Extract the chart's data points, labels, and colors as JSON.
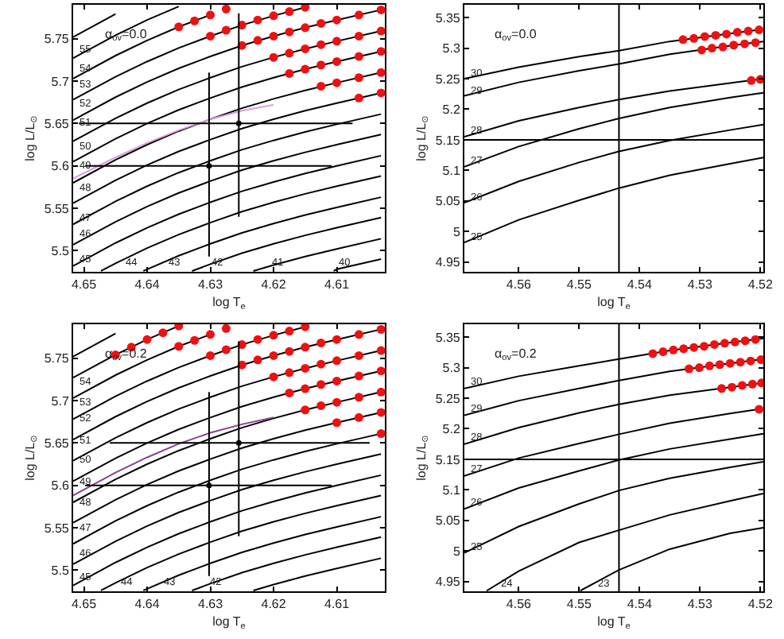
{
  "chart_data": [
    {
      "type": "line",
      "xlabel": "log T$_{e}$",
      "ylabel": "log L/L$_{⊙}$",
      "xlim": [
        4.6517,
        4.6024
      ],
      "ylim": [
        5.475,
        5.79
      ],
      "xticks": [
        4.65,
        4.64,
        4.63,
        4.62,
        4.61
      ],
      "yticks": [
        5.5,
        5.55,
        5.6,
        5.65,
        5.7,
        5.75
      ],
      "x": [
        4.6517,
        4.645,
        4.64,
        4.635,
        4.63,
        4.625,
        4.62,
        4.615,
        4.61,
        4.603
      ],
      "series": [
        {
          "type": "line",
          "color": "#000000",
          "values": [
            5.752,
            5.779,
            null,
            null,
            null,
            null,
            null,
            null,
            null,
            null
          ]
        },
        {
          "type": "line",
          "color": "#000000",
          "values": [
            5.727,
            5.754,
            5.772,
            5.788,
            null,
            null,
            null,
            null,
            null,
            null
          ]
        },
        {
          "type": "line",
          "color": "#000000",
          "values": [
            5.703,
            5.73,
            5.748,
            5.764,
            5.778,
            null,
            null,
            null,
            null,
            null
          ]
        },
        {
          "type": "line",
          "color": "#000000",
          "values": [
            5.678,
            5.705,
            5.723,
            5.739,
            5.753,
            5.766,
            5.777,
            5.787,
            null,
            null
          ]
        },
        {
          "type": "line",
          "color": "#000000",
          "values": [
            5.654,
            5.681,
            5.699,
            5.715,
            5.729,
            5.742,
            5.753,
            5.763,
            5.772,
            5.784
          ]
        },
        {
          "type": "line",
          "color": "#000000",
          "values": [
            5.629,
            5.656,
            5.674,
            5.69,
            5.704,
            5.717,
            5.728,
            5.738,
            5.747,
            5.759
          ]
        },
        {
          "type": "line",
          "color": "#000000",
          "values": [
            5.605,
            5.632,
            5.65,
            5.666,
            5.68,
            5.693,
            5.704,
            5.714,
            5.723,
            5.735
          ]
        },
        {
          "type": "line",
          "color": "#000000",
          "values": [
            5.58,
            5.607,
            5.625,
            5.641,
            5.655,
            5.668,
            5.679,
            5.689,
            5.698,
            5.71
          ]
        },
        {
          "type": "line",
          "color": "#000000",
          "values": [
            5.556,
            5.583,
            5.601,
            5.617,
            5.631,
            5.644,
            5.655,
            5.665,
            5.674,
            5.686
          ]
        },
        {
          "type": "line",
          "color": "#000000",
          "values": [
            5.531,
            5.558,
            5.576,
            5.592,
            5.606,
            5.619,
            5.63,
            5.64,
            5.649,
            5.661
          ]
        },
        {
          "type": "line",
          "color": "#000000",
          "values": [
            5.507,
            5.534,
            5.552,
            5.568,
            5.582,
            5.595,
            5.606,
            5.616,
            5.625,
            5.637
          ]
        },
        {
          "type": "line",
          "color": "#000000",
          "values": [
            5.482,
            5.509,
            5.527,
            5.543,
            5.557,
            5.57,
            5.581,
            5.591,
            5.6,
            5.612
          ]
        },
        {
          "type": "line",
          "color": "#000000",
          "x": [
            4.6473,
            4.645,
            4.64,
            4.635,
            4.63,
            4.625,
            4.62,
            4.615,
            4.61,
            4.603
          ],
          "values": [
            5.476,
            5.485,
            5.503,
            5.519,
            5.533,
            5.546,
            5.557,
            5.567,
            5.576,
            5.588
          ]
        },
        {
          "type": "line",
          "color": "#000000",
          "x": [
            4.6406,
            4.64,
            4.635,
            4.63,
            4.625,
            4.62,
            4.615,
            4.61,
            4.603
          ],
          "values": [
            5.476,
            5.478,
            5.494,
            5.508,
            5.521,
            5.532,
            5.542,
            5.551,
            5.563
          ]
        },
        {
          "type": "line",
          "color": "#000000",
          "x": [
            4.6329,
            4.63,
            4.625,
            4.62,
            4.615,
            4.61,
            4.603
          ],
          "values": [
            5.476,
            5.484,
            5.497,
            5.508,
            5.518,
            5.527,
            5.539
          ]
        },
        {
          "type": "line",
          "color": "#000000",
          "x": [
            4.6232,
            4.62,
            4.615,
            4.61,
            4.603
          ],
          "values": [
            5.476,
            5.483,
            5.493,
            5.502,
            5.514
          ]
        },
        {
          "type": "line",
          "color": "#000000",
          "x": [
            4.6105,
            4.61,
            4.603
          ],
          "values": [
            5.476,
            5.478,
            5.49
          ]
        },
        {
          "type": "line",
          "color": "#dd99dd",
          "values": [
            5.585,
            5.61,
            5.627,
            5.642,
            5.655,
            5.665,
            5.672,
            null,
            null,
            null
          ]
        },
        {
          "type": "scatter",
          "marker": "circle",
          "color": "#ee1111",
          "x": [
            4.635,
            4.6325,
            4.63,
            4.6275
          ],
          "values": [
            5.764,
            5.771,
            5.778,
            5.785
          ]
        },
        {
          "type": "scatter",
          "marker": "circle",
          "color": "#ee1111",
          "x": [
            4.63,
            4.6275,
            4.625,
            4.6225,
            4.62,
            4.6175,
            4.615
          ],
          "values": [
            5.753,
            5.76,
            5.766,
            5.772,
            5.777,
            5.782,
            5.787
          ]
        },
        {
          "type": "scatter",
          "marker": "circle",
          "color": "#ee1111",
          "x": [
            4.625,
            4.6225,
            4.62,
            4.6175,
            4.615,
            4.6125,
            4.61,
            4.6065,
            4.603
          ],
          "values": [
            5.742,
            5.748,
            5.753,
            5.758,
            5.763,
            5.768,
            5.772,
            5.778,
            5.784
          ]
        },
        {
          "type": "scatter",
          "marker": "circle",
          "color": "#ee1111",
          "x": [
            4.62,
            4.6175,
            4.615,
            4.6125,
            4.61,
            4.6065,
            4.603
          ],
          "values": [
            5.728,
            5.733,
            5.738,
            5.743,
            5.747,
            5.753,
            5.759
          ]
        },
        {
          "type": "scatter",
          "marker": "circle",
          "color": "#ee1111",
          "x": [
            4.6175,
            4.615,
            4.6125,
            4.61,
            4.6065,
            4.603
          ],
          "values": [
            5.709,
            5.714,
            5.719,
            5.723,
            5.729,
            5.735
          ]
        },
        {
          "type": "scatter",
          "marker": "circle",
          "color": "#ee1111",
          "x": [
            4.6125,
            4.61,
            4.6065,
            4.603
          ],
          "values": [
            5.694,
            5.698,
            5.704,
            5.71
          ]
        },
        {
          "type": "scatter",
          "marker": "circle",
          "color": "#ee1111",
          "x": [
            4.6065,
            4.603
          ],
          "values": [
            5.68,
            5.686
          ]
        },
        {
          "type": "line",
          "color": "#000000",
          "x": [
            4.6498,
            4.6108
          ],
          "values": [
            5.6,
            5.6
          ]
        },
        {
          "type": "line",
          "color": "#000000",
          "x": [
            4.6302,
            4.6302
          ],
          "values": [
            5.493,
            5.71
          ]
        },
        {
          "type": "line",
          "color": "#000000",
          "x": [
            4.6508,
            4.6075
          ],
          "values": [
            5.65,
            5.65
          ]
        },
        {
          "type": "line",
          "color": "#000000",
          "x": [
            4.6255,
            4.6255
          ],
          "values": [
            5.54,
            5.78
          ]
        },
        {
          "type": "scatter",
          "marker": "circle",
          "color": "#000000",
          "x": [
            4.6302,
            4.6255
          ],
          "values": [
            5.6,
            5.65
          ]
        }
      ],
      "annotations": [
        "α$_{ov}$=0.0",
        {
          "text": "55",
          "x": 4.6512,
          "y": 5.736
        },
        {
          "text": "54",
          "x": 4.6512,
          "y": 5.714
        },
        {
          "text": "53",
          "x": 4.6512,
          "y": 5.696
        },
        {
          "text": "52",
          "x": 4.6512,
          "y": 5.672
        },
        {
          "text": "51",
          "x": 4.6512,
          "y": 5.65
        },
        {
          "text": "50",
          "x": 4.6512,
          "y": 5.623
        },
        {
          "text": "49",
          "x": 4.6512,
          "y": 5.6
        },
        {
          "text": "48",
          "x": 4.6512,
          "y": 5.573
        },
        {
          "text": "47",
          "x": 4.6512,
          "y": 5.538
        },
        {
          "text": "46",
          "x": 4.6512,
          "y": 5.52
        },
        {
          "text": "45",
          "x": 4.6512,
          "y": 5.489
        },
        {
          "text": "44",
          "x": 4.644,
          "y": 5.485
        },
        {
          "text": "43",
          "x": 4.6371,
          "y": 5.485
        },
        {
          "text": "42",
          "x": 4.6302,
          "y": 5.485
        },
        {
          "text": "41",
          "x": 4.6208,
          "y": 5.485
        },
        {
          "text": "40",
          "x": 4.6103,
          "y": 5.485
        }
      ]
    },
    {
      "type": "line",
      "xlabel": "log T$_{e}$",
      "ylabel": "log L/L$_{⊙}$",
      "xlim": [
        4.569,
        4.5195
      ],
      "ylim": [
        4.934,
        5.371
      ],
      "xticks": [
        4.56,
        4.55,
        4.54,
        4.53,
        4.52
      ],
      "yticks": [
        4.95,
        5,
        5.05,
        5.1,
        5.15,
        5.2,
        5.25,
        5.3,
        5.35
      ],
      "x": [
        4.569,
        4.56,
        4.55,
        4.5434,
        4.535,
        4.525,
        4.5195
      ],
      "series": [
        {
          "type": "line",
          "color": "#000000",
          "values": [
            5.25,
            5.269,
            5.286,
            5.296,
            5.311,
            5.324,
            5.331
          ]
        },
        {
          "type": "line",
          "color": "#000000",
          "values": [
            5.222,
            5.244,
            5.263,
            5.274,
            5.29,
            5.304,
            5.311
          ]
        },
        {
          "type": "line",
          "color": "#000000",
          "values": [
            5.155,
            5.181,
            5.203,
            5.216,
            5.23,
            5.243,
            5.25
          ]
        },
        {
          "type": "line",
          "color": "#000000",
          "values": [
            5.106,
            5.139,
            5.168,
            5.185,
            5.203,
            5.219,
            5.227
          ]
        },
        {
          "type": "line",
          "color": "#000000",
          "values": [
            5.047,
            5.082,
            5.113,
            5.131,
            5.149,
            5.166,
            5.175
          ]
        },
        {
          "type": "line",
          "color": "#000000",
          "values": [
            4.982,
            5.019,
            5.051,
            5.071,
            5.092,
            5.111,
            5.121
          ]
        },
        {
          "type": "scatter",
          "marker": "circle",
          "color": "#ee1111",
          "x": [
            4.5328,
            4.531,
            4.5292,
            4.5274,
            4.5256,
            4.5238,
            4.522,
            4.5202
          ],
          "values": [
            5.314,
            5.316,
            5.319,
            5.321,
            5.323,
            5.326,
            5.328,
            5.33
          ]
        },
        {
          "type": "scatter",
          "marker": "circle",
          "color": "#ee1111",
          "x": [
            4.5297,
            4.528,
            4.5262,
            4.5244,
            4.5226,
            4.5208
          ],
          "values": [
            5.297,
            5.3,
            5.302,
            5.305,
            5.307,
            5.309
          ]
        },
        {
          "type": "scatter",
          "marker": "circle",
          "color": "#ee1111",
          "x": [
            4.5215,
            4.52
          ],
          "values": [
            5.247,
            5.249
          ]
        }
      ],
      "ref_lines": [
        {
          "axis": "x",
          "value": 4.5434
        },
        {
          "axis": "y",
          "value": 5.15
        }
      ],
      "annotations": [
        "α$_{ov}$=0.0",
        {
          "text": "30",
          "x": 4.5685,
          "y": 5.258
        },
        {
          "text": "29",
          "x": 4.5685,
          "y": 5.23
        },
        {
          "text": "28",
          "x": 4.5685,
          "y": 5.163
        },
        {
          "text": "27",
          "x": 4.5685,
          "y": 5.115
        },
        {
          "text": "26",
          "x": 4.5685,
          "y": 5.056
        },
        {
          "text": "25",
          "x": 4.5685,
          "y": 4.99
        }
      ]
    },
    {
      "type": "line",
      "xlabel": "log T$_{e}$",
      "ylabel": "log L/L$_{⊙}$",
      "xlim": [
        4.6517,
        4.6024
      ],
      "ylim": [
        5.475,
        5.79
      ],
      "xticks": [
        4.65,
        4.64,
        4.63,
        4.62,
        4.61
      ],
      "yticks": [
        5.5,
        5.55,
        5.6,
        5.65,
        5.7,
        5.75
      ],
      "x": [
        4.6517,
        4.645,
        4.64,
        4.635,
        4.63,
        4.625,
        4.62,
        4.615,
        4.61,
        4.603
      ],
      "series": [
        {
          "type": "line",
          "color": "#000000",
          "values": [
            5.752,
            5.779,
            null,
            null,
            null,
            null,
            null,
            null,
            null,
            null
          ]
        },
        {
          "type": "line",
          "color": "#000000",
          "values": [
            5.727,
            5.754,
            5.772,
            5.788,
            null,
            null,
            null,
            null,
            null,
            null
          ]
        },
        {
          "type": "line",
          "color": "#000000",
          "values": [
            5.703,
            5.73,
            5.748,
            5.764,
            5.778,
            null,
            null,
            null,
            null,
            null
          ]
        },
        {
          "type": "line",
          "color": "#000000",
          "values": [
            5.678,
            5.705,
            5.723,
            5.739,
            5.753,
            5.766,
            5.777,
            5.787,
            null,
            null
          ]
        },
        {
          "type": "line",
          "color": "#000000",
          "values": [
            5.654,
            5.681,
            5.699,
            5.715,
            5.729,
            5.742,
            5.753,
            5.763,
            5.772,
            5.784
          ]
        },
        {
          "type": "line",
          "color": "#000000",
          "values": [
            5.629,
            5.656,
            5.674,
            5.69,
            5.704,
            5.717,
            5.728,
            5.738,
            5.747,
            5.759
          ]
        },
        {
          "type": "line",
          "color": "#000000",
          "values": [
            5.605,
            5.632,
            5.65,
            5.666,
            5.68,
            5.693,
            5.704,
            5.714,
            5.723,
            5.735
          ]
        },
        {
          "type": "line",
          "color": "#000000",
          "values": [
            5.58,
            5.607,
            5.625,
            5.641,
            5.655,
            5.668,
            5.679,
            5.689,
            5.698,
            5.71
          ]
        },
        {
          "type": "line",
          "color": "#000000",
          "values": [
            5.556,
            5.583,
            5.601,
            5.617,
            5.631,
            5.644,
            5.655,
            5.665,
            5.674,
            5.686
          ]
        },
        {
          "type": "line",
          "color": "#000000",
          "values": [
            5.531,
            5.558,
            5.576,
            5.592,
            5.606,
            5.619,
            5.63,
            5.64,
            5.649,
            5.661
          ]
        },
        {
          "type": "line",
          "color": "#000000",
          "values": [
            5.507,
            5.534,
            5.552,
            5.568,
            5.582,
            5.595,
            5.606,
            5.616,
            5.625,
            5.637
          ]
        },
        {
          "type": "line",
          "color": "#000000",
          "values": [
            5.482,
            5.509,
            5.527,
            5.543,
            5.557,
            5.57,
            5.581,
            5.591,
            5.6,
            5.612
          ]
        },
        {
          "type": "line",
          "color": "#000000",
          "x": [
            4.6473,
            4.645,
            4.64,
            4.635,
            4.63,
            4.625,
            4.62,
            4.615,
            4.61,
            4.603
          ],
          "values": [
            5.476,
            5.485,
            5.503,
            5.519,
            5.533,
            5.546,
            5.557,
            5.567,
            5.576,
            5.588
          ]
        },
        {
          "type": "line",
          "color": "#000000",
          "x": [
            4.6406,
            4.64,
            4.635,
            4.63,
            4.625,
            4.62,
            4.615,
            4.61,
            4.603
          ],
          "values": [
            5.476,
            5.478,
            5.494,
            5.508,
            5.521,
            5.532,
            5.542,
            5.551,
            5.563
          ]
        },
        {
          "type": "line",
          "color": "#000000",
          "x": [
            4.6329,
            4.63,
            4.625,
            4.62,
            4.615,
            4.61,
            4.603
          ],
          "values": [
            5.476,
            5.484,
            5.497,
            5.508,
            5.518,
            5.527,
            5.539
          ]
        },
        {
          "type": "line",
          "color": "#000000",
          "x": [
            4.6232,
            4.62,
            4.615,
            4.61,
            4.603
          ],
          "values": [
            5.476,
            5.483,
            5.493,
            5.502,
            5.514
          ]
        },
        {
          "type": "line",
          "color": "#884488",
          "values": [
            5.588,
            5.615,
            5.633,
            5.649,
            5.662,
            5.672,
            5.68,
            null,
            null,
            null
          ]
        },
        {
          "type": "scatter",
          "marker": "circle",
          "color": "#ee1111",
          "x": [
            4.645,
            4.6425,
            4.64,
            4.6375,
            4.635
          ],
          "values": [
            5.754,
            5.763,
            5.772,
            5.78,
            5.788
          ]
        },
        {
          "type": "scatter",
          "marker": "circle",
          "color": "#ee1111",
          "x": [
            4.635,
            4.6325,
            4.63,
            4.6275
          ],
          "values": [
            5.764,
            5.771,
            5.778,
            5.785
          ]
        },
        {
          "type": "scatter",
          "marker": "circle",
          "color": "#ee1111",
          "x": [
            4.63,
            4.6275,
            4.625,
            4.6225,
            4.62,
            4.6175,
            4.615
          ],
          "values": [
            5.753,
            5.76,
            5.766,
            5.772,
            5.777,
            5.782,
            5.787
          ]
        },
        {
          "type": "scatter",
          "marker": "circle",
          "color": "#ee1111",
          "x": [
            4.625,
            4.6225,
            4.62,
            4.6175,
            4.615,
            4.6125,
            4.61,
            4.6065,
            4.603
          ],
          "values": [
            5.742,
            5.748,
            5.753,
            5.758,
            5.763,
            5.768,
            5.772,
            5.778,
            5.784
          ]
        },
        {
          "type": "scatter",
          "marker": "circle",
          "color": "#ee1111",
          "x": [
            4.62,
            4.6175,
            4.615,
            4.6125,
            4.61,
            4.6065,
            4.603
          ],
          "values": [
            5.728,
            5.733,
            5.738,
            5.743,
            5.747,
            5.753,
            5.759
          ]
        },
        {
          "type": "scatter",
          "marker": "circle",
          "color": "#ee1111",
          "x": [
            4.6175,
            4.615,
            4.6125,
            4.61,
            4.6065,
            4.603
          ],
          "values": [
            5.709,
            5.714,
            5.719,
            5.723,
            5.729,
            5.735
          ]
        },
        {
          "type": "scatter",
          "marker": "circle",
          "color": "#ee1111",
          "x": [
            4.615,
            4.6125,
            4.61,
            4.6065,
            4.603
          ],
          "values": [
            5.689,
            5.694,
            5.698,
            5.704,
            5.71
          ]
        },
        {
          "type": "scatter",
          "marker": "circle",
          "color": "#ee1111",
          "x": [
            4.61,
            4.6065,
            4.603
          ],
          "values": [
            5.674,
            5.68,
            5.686
          ]
        },
        {
          "type": "scatter",
          "marker": "circle",
          "color": "#ee1111",
          "x": [
            4.603
          ],
          "values": [
            5.661
          ]
        },
        {
          "type": "line",
          "color": "#000000",
          "x": [
            4.6498,
            4.6108
          ],
          "values": [
            5.6,
            5.6
          ]
        },
        {
          "type": "line",
          "color": "#000000",
          "x": [
            4.6302,
            4.6302
          ],
          "values": [
            5.493,
            5.71
          ]
        },
        {
          "type": "line",
          "color": "#000000",
          "x": [
            4.6459,
            4.6048
          ],
          "values": [
            5.65,
            5.65
          ]
        },
        {
          "type": "line",
          "color": "#000000",
          "x": [
            4.6255,
            4.6255
          ],
          "values": [
            5.54,
            5.77
          ]
        },
        {
          "type": "scatter",
          "marker": "circle",
          "color": "#000000",
          "x": [
            4.6302,
            4.6255
          ],
          "values": [
            5.6,
            5.65
          ]
        }
      ],
      "annotations": [
        "α$_{ov}$=0.2",
        {
          "text": "54",
          "x": 4.6512,
          "y": 5.721
        },
        {
          "text": "53",
          "x": 4.6512,
          "y": 5.698
        },
        {
          "text": "52",
          "x": 4.6512,
          "y": 5.678
        },
        {
          "text": "51",
          "x": 4.6512,
          "y": 5.652
        },
        {
          "text": "50",
          "x": 4.6512,
          "y": 5.629
        },
        {
          "text": "49",
          "x": 4.6512,
          "y": 5.604
        },
        {
          "text": "48",
          "x": 4.6512,
          "y": 5.579
        },
        {
          "text": "47",
          "x": 4.6512,
          "y": 5.55
        },
        {
          "text": "46",
          "x": 4.6512,
          "y": 5.52
        },
        {
          "text": "45",
          "x": 4.6512,
          "y": 5.491
        },
        {
          "text": "44",
          "x": 4.6447,
          "y": 5.485
        },
        {
          "text": "43",
          "x": 4.6379,
          "y": 5.485
        },
        {
          "text": "42",
          "x": 4.6306,
          "y": 5.485
        }
      ]
    },
    {
      "type": "line",
      "xlabel": "log T$_{e}$",
      "ylabel": "log L/L$_{⊙}$",
      "xlim": [
        4.569,
        4.5195
      ],
      "ylim": [
        4.934,
        5.371
      ],
      "xticks": [
        4.56,
        4.55,
        4.54,
        4.53,
        4.52
      ],
      "yticks": [
        4.95,
        5,
        5.05,
        5.1,
        5.15,
        5.2,
        5.25,
        5.3,
        5.35
      ],
      "x": [
        4.569,
        4.56,
        4.55,
        4.5434,
        4.535,
        4.525,
        4.5195
      ],
      "series": [
        {
          "type": "line",
          "color": "#000000",
          "values": [
            5.266,
            5.286,
            5.303,
            5.314,
            5.328,
            5.341,
            5.348
          ]
        },
        {
          "type": "line",
          "color": "#000000",
          "values": [
            5.222,
            5.246,
            5.266,
            5.279,
            5.294,
            5.307,
            5.314
          ]
        },
        {
          "type": "line",
          "color": "#000000",
          "values": [
            5.175,
            5.202,
            5.226,
            5.24,
            5.255,
            5.268,
            5.275
          ]
        },
        {
          "type": "line",
          "color": "#000000",
          "values": [
            5.123,
            5.152,
            5.176,
            5.191,
            5.209,
            5.225,
            5.233
          ]
        },
        {
          "type": "line",
          "color": "#000000",
          "values": [
            5.069,
            5.103,
            5.131,
            5.149,
            5.167,
            5.183,
            5.192
          ]
        },
        {
          "type": "line",
          "color": "#000000",
          "values": [
            4.997,
            5.04,
            5.077,
            5.099,
            5.119,
            5.137,
            5.146
          ]
        },
        {
          "type": "line",
          "color": "#000000",
          "x": [
            4.5653,
            4.56,
            4.55,
            4.5434,
            4.535,
            4.525,
            4.5195
          ],
          "values": [
            4.935,
            4.967,
            5.014,
            5.034,
            5.059,
            5.082,
            5.094
          ]
        },
        {
          "type": "line",
          "color": "#000000",
          "x": [
            4.5498,
            4.5434,
            4.535,
            4.525,
            4.5195
          ],
          "values": [
            4.935,
            4.969,
            5.003,
            5.029,
            5.038
          ]
        },
        {
          "type": "scatter",
          "marker": "circle",
          "color": "#ee1111",
          "x": [
            4.5378,
            4.5361,
            4.5344,
            4.5327,
            4.531,
            4.5293,
            4.5276,
            4.5259,
            4.5242,
            4.5225,
            4.5208
          ],
          "values": [
            5.323,
            5.326,
            5.329,
            5.331,
            5.333,
            5.335,
            5.338,
            5.34,
            5.342,
            5.344,
            5.346
          ]
        },
        {
          "type": "scatter",
          "marker": "circle",
          "color": "#ee1111",
          "x": [
            4.5318,
            4.5301,
            4.5284,
            4.5267,
            4.525,
            4.5233,
            4.5216,
            4.5199
          ],
          "values": [
            5.298,
            5.3,
            5.303,
            5.305,
            5.307,
            5.309,
            5.311,
            5.313
          ]
        },
        {
          "type": "scatter",
          "marker": "circle",
          "color": "#ee1111",
          "x": [
            4.5264,
            4.5247,
            4.523,
            4.5213,
            4.5198
          ],
          "values": [
            5.266,
            5.268,
            5.271,
            5.273,
            5.275
          ]
        },
        {
          "type": "scatter",
          "marker": "circle",
          "color": "#ee1111",
          "x": [
            4.5202
          ],
          "values": [
            5.232
          ]
        }
      ],
      "ref_lines": [
        {
          "axis": "x",
          "value": 4.5434
        },
        {
          "axis": "y",
          "value": 5.15
        }
      ],
      "annotations": [
        "α$_{ov}$=0.2",
        {
          "text": "30",
          "x": 4.5685,
          "y": 5.275
        },
        {
          "text": "29",
          "x": 4.5685,
          "y": 5.231
        },
        {
          "text": "28",
          "x": 4.5685,
          "y": 5.184
        },
        {
          "text": "27",
          "x": 4.5685,
          "y": 5.132
        },
        {
          "text": "26",
          "x": 4.5685,
          "y": 5.078
        },
        {
          "text": "25",
          "x": 4.5685,
          "y": 5.006
        },
        {
          "text": "24",
          "x": 4.5635,
          "y": 4.945
        },
        {
          "text": "23",
          "x": 4.5475,
          "y": 4.945
        }
      ]
    }
  ]
}
